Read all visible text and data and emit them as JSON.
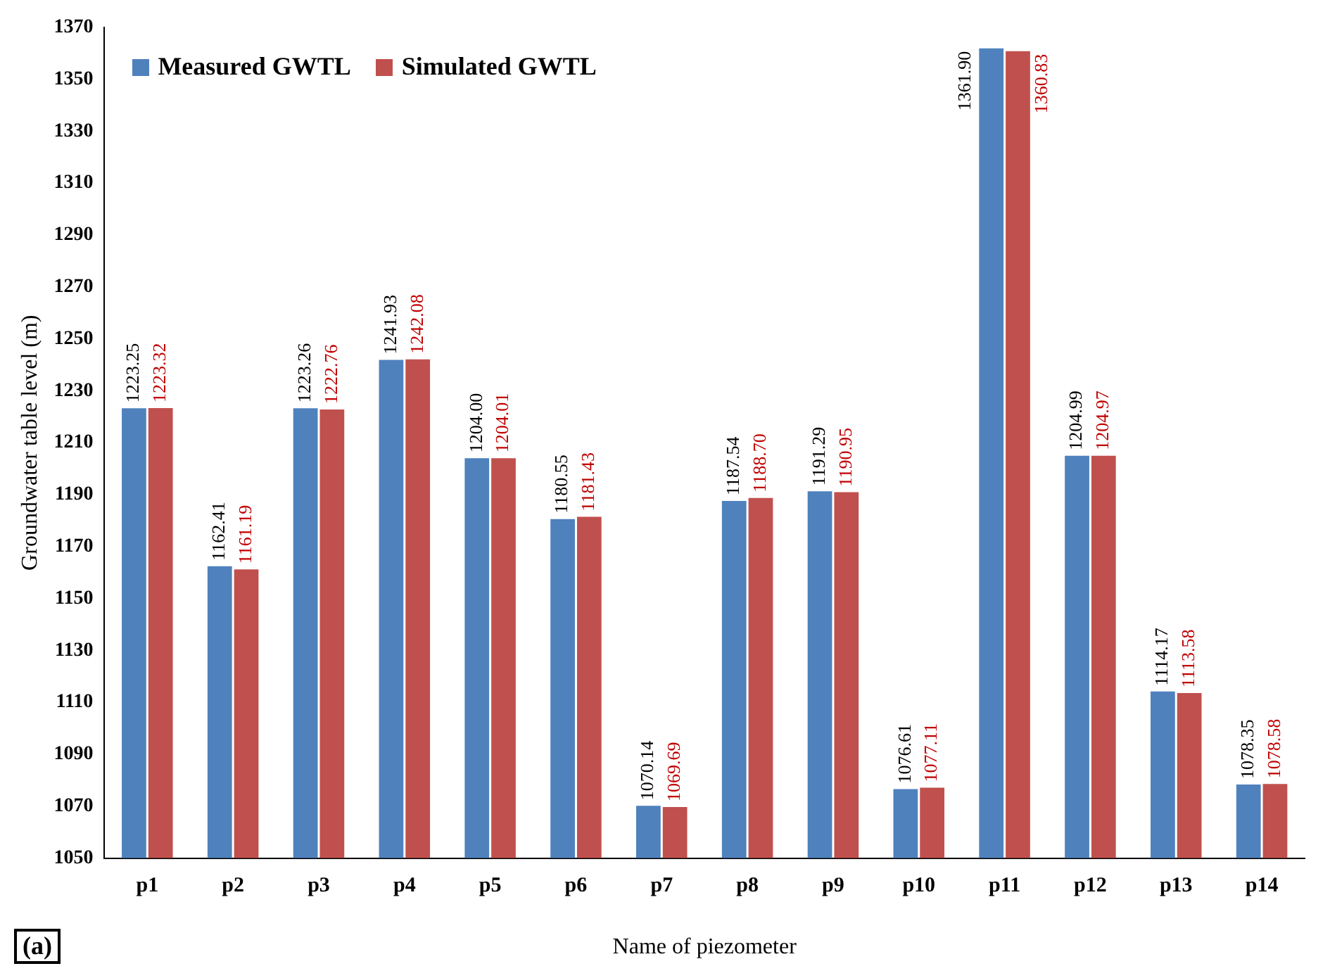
{
  "chart_data": {
    "type": "bar",
    "xlabel": "Name of piezometer",
    "ylabel": "Groundwater table level (m)",
    "categories": [
      "p1",
      "p2",
      "p3",
      "p4",
      "p5",
      "p6",
      "p7",
      "p8",
      "p9",
      "p10",
      "p11",
      "p12",
      "p13",
      "p14"
    ],
    "series": [
      {
        "name": "Measured GWTL",
        "color": "#4f81bd",
        "values": [
          1223.25,
          1162.41,
          1223.26,
          1241.93,
          1204.0,
          1180.55,
          1070.14,
          1187.54,
          1191.29,
          1076.61,
          1361.9,
          1204.99,
          1114.17,
          1078.35
        ],
        "value_labels": [
          "1223.25",
          "1162.41",
          "1223.26",
          "1241.93",
          "1204.00",
          "1180.55",
          "1070.14",
          "1187.54",
          "1191.29",
          "1076.61",
          "1361.90",
          "1204.99",
          "1114.17",
          "1078.35"
        ]
      },
      {
        "name": "Simulated GWTL",
        "color": "#c0504d",
        "values": [
          1223.32,
          1161.19,
          1222.76,
          1242.08,
          1204.01,
          1181.43,
          1069.69,
          1188.7,
          1190.95,
          1077.11,
          1360.83,
          1204.97,
          1113.58,
          1078.58
        ],
        "value_labels": [
          "1223.32",
          "1161.19",
          "1222.76",
          "1242.08",
          "1204.01",
          "1181.43",
          "1069.69",
          "1188.70",
          "1190.95",
          "1077.11",
          "1360.83",
          "1204.97",
          "1113.58",
          "1078.58"
        ]
      }
    ],
    "ylim": [
      1050,
      1370
    ],
    "yticks": [
      1050,
      1070,
      1090,
      1110,
      1130,
      1150,
      1170,
      1190,
      1210,
      1230,
      1250,
      1270,
      1290,
      1310,
      1330,
      1350,
      1370
    ],
    "grid": false,
    "legend": "top left",
    "annotations": [
      "(a)"
    ]
  }
}
